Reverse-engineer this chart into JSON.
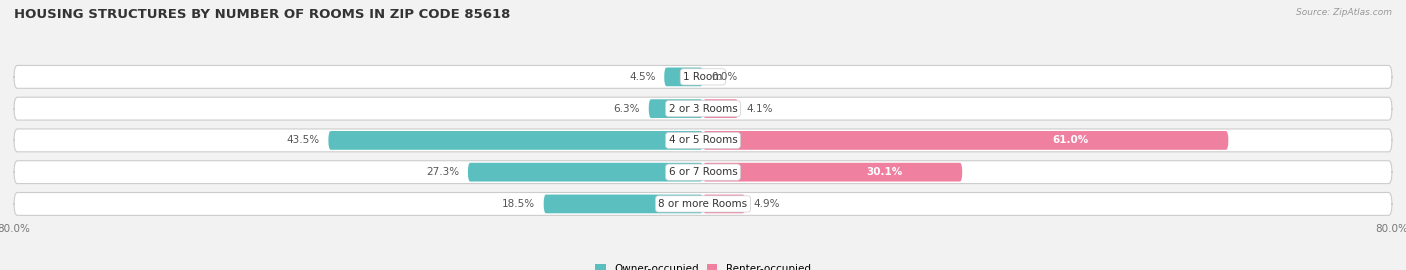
{
  "title": "HOUSING STRUCTURES BY NUMBER OF ROOMS IN ZIP CODE 85618",
  "source": "Source: ZipAtlas.com",
  "categories": [
    "1 Room",
    "2 or 3 Rooms",
    "4 or 5 Rooms",
    "6 or 7 Rooms",
    "8 or more Rooms"
  ],
  "owner_values": [
    4.5,
    6.3,
    43.5,
    27.3,
    18.5
  ],
  "renter_values": [
    0.0,
    4.1,
    61.0,
    30.1,
    4.9
  ],
  "owner_color": "#5bbfc0",
  "renter_color": "#f080a0",
  "bar_height": 0.72,
  "xlim": [
    -80,
    80
  ],
  "bg_color": "#f2f2f2",
  "row_bg_color": "#e8e8e8",
  "title_fontsize": 9.5,
  "label_fontsize": 7.5,
  "value_fontsize": 7.5,
  "tick_fontsize": 7.5,
  "legend_fontsize": 7.5
}
